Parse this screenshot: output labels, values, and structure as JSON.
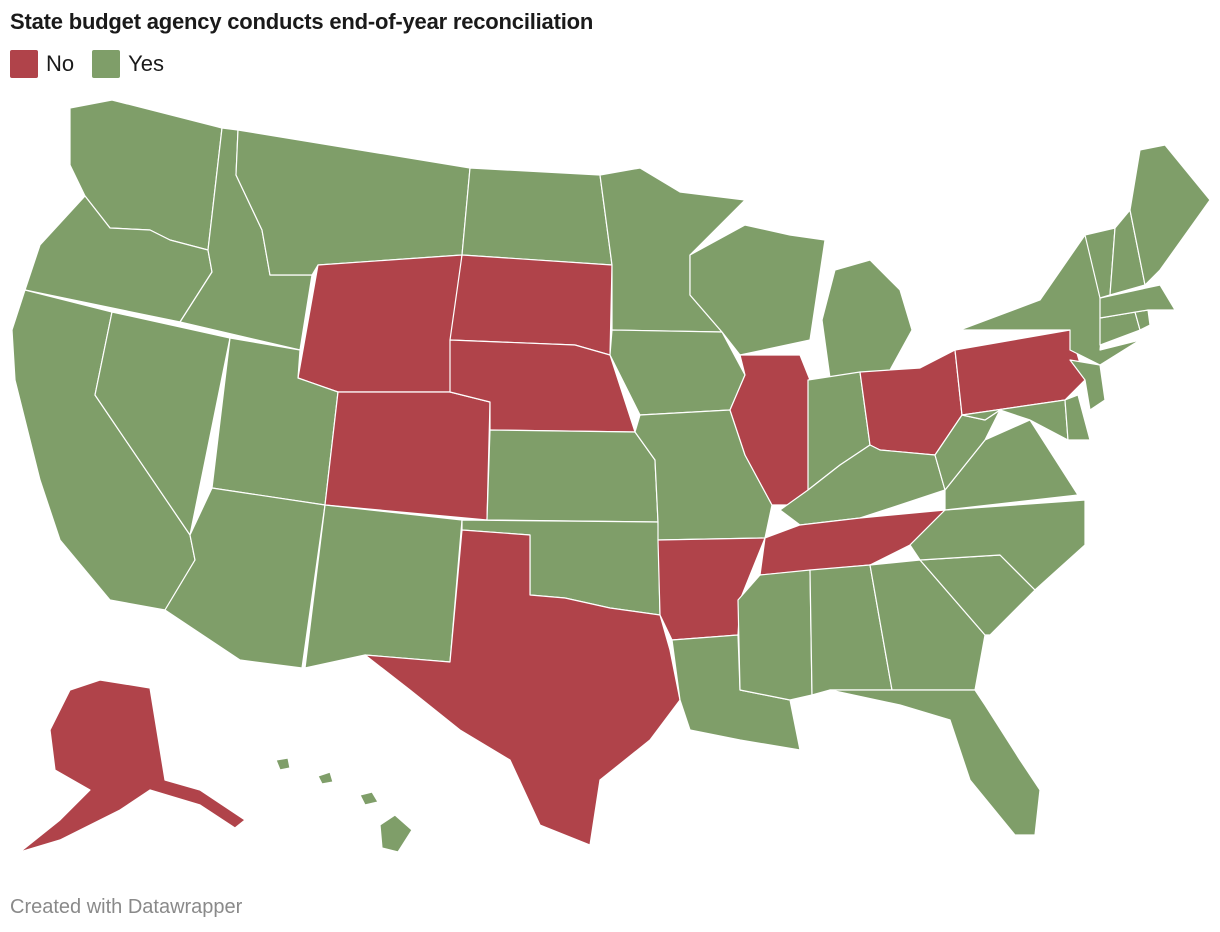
{
  "title": "State budget agency conducts end-of-year reconciliation",
  "legend": [
    {
      "label": "No",
      "color": "#b0434a"
    },
    {
      "label": "Yes",
      "color": "#7f9e69"
    }
  ],
  "footer": "Created with Datawrapper",
  "map_data": {
    "type": "choropleth",
    "region": "United States",
    "categories": {
      "No": "#b0434a",
      "Yes": "#7f9e69"
    },
    "states": {
      "AK": "No",
      "WY": "No",
      "SD": "No",
      "NE": "No",
      "CO": "No",
      "TX": "No",
      "AR": "No",
      "IL": "No",
      "TN": "No",
      "OH": "No",
      "PA": "No",
      "WA": "Yes",
      "OR": "Yes",
      "CA": "Yes",
      "ID": "Yes",
      "NV": "Yes",
      "MT": "Yes",
      "UT": "Yes",
      "AZ": "Yes",
      "NM": "Yes",
      "ND": "Yes",
      "KS": "Yes",
      "OK": "Yes",
      "MN": "Yes",
      "IA": "Yes",
      "MO": "Yes",
      "LA": "Yes",
      "WI": "Yes",
      "MI": "Yes",
      "IN": "Yes",
      "KY": "Yes",
      "MS": "Yes",
      "AL": "Yes",
      "GA": "Yes",
      "FL": "Yes",
      "SC": "Yes",
      "NC": "Yes",
      "VA": "Yes",
      "WV": "Yes",
      "MD": "Yes",
      "DE": "Yes",
      "NJ": "Yes",
      "NY": "Yes",
      "CT": "Yes",
      "RI": "Yes",
      "MA": "Yes",
      "VT": "Yes",
      "NH": "Yes",
      "ME": "Yes",
      "HI": "Yes"
    }
  }
}
